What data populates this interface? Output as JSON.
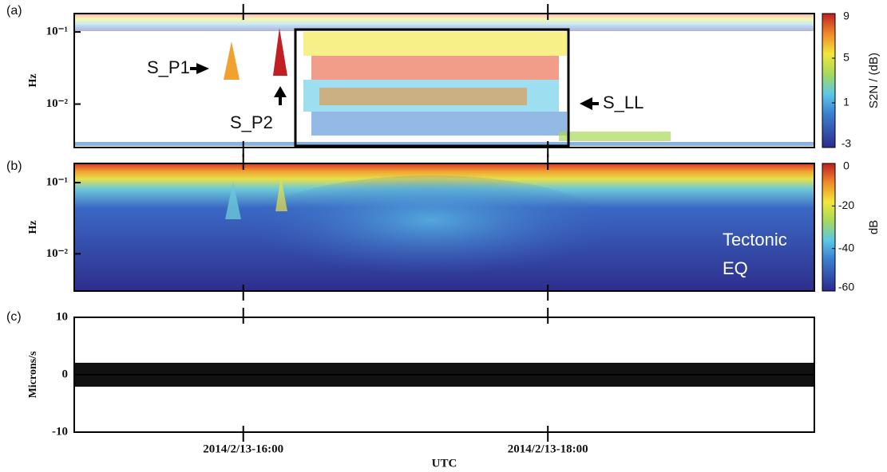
{
  "chart_data": [
    {
      "type": "heatmap",
      "panel_label": "(a)",
      "ylabel": "Hz",
      "yscale": "log",
      "xlim": [
        14.89,
        19.75
      ],
      "ylim": [
        0.0025,
        0.18
      ],
      "yticks": [
        {
          "value": 0.01,
          "label": "10⁻²"
        },
        {
          "value": 0.1,
          "label": "10⁻¹"
        }
      ],
      "xticks": [
        {
          "value": 16,
          "label": "2014/2/13-16:00"
        },
        {
          "value": 18,
          "label": "2014/2/13-18:00"
        }
      ],
      "colorbar": {
        "label": "S2N / (dB)",
        "lim": [
          -3,
          9
        ],
        "ticks": [
          -3,
          1,
          5,
          9
        ]
      },
      "annotations": [
        "S_P1",
        "S_P2",
        "S_LL"
      ]
    },
    {
      "type": "heatmap",
      "panel_label": "(b)",
      "ylabel": "Hz",
      "yscale": "log",
      "xlim": [
        14.89,
        19.75
      ],
      "ylim": [
        0.003,
        0.186
      ],
      "yticks": [
        {
          "value": 0.01,
          "label": "10⁻²"
        },
        {
          "value": 0.1,
          "label": "10⁻¹"
        }
      ],
      "xticks": [
        {
          "value": 16,
          "label": "2014/2/13-16:00"
        },
        {
          "value": 18,
          "label": "2014/2/13-18:00"
        }
      ],
      "colorbar": {
        "label": "dB",
        "lim": [
          -60,
          0
        ],
        "ticks": [
          -60,
          -40,
          -20,
          0
        ]
      },
      "annotations": [
        "Tectonic",
        "EQ"
      ]
    },
    {
      "type": "line",
      "panel_label": "(c)",
      "ylabel": "Microns/s",
      "xlabel": "UTC",
      "xlim": [
        14.89,
        19.75
      ],
      "ylim": [
        -10,
        10
      ],
      "yticks": [
        -10,
        0,
        10
      ],
      "xticks": [
        {
          "value": 16,
          "label": "2014/2/13-16:00"
        },
        {
          "value": 18,
          "label": "2014/2/13-18:00"
        }
      ]
    }
  ]
}
